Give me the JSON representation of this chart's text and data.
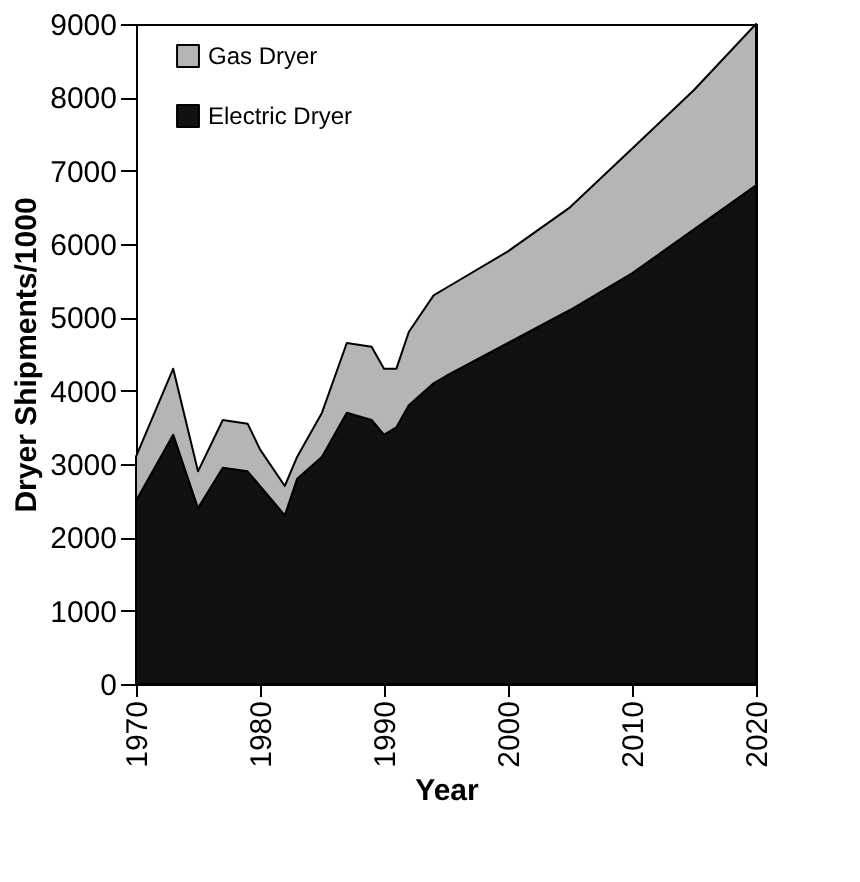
{
  "chart_data": {
    "type": "area",
    "stacked": true,
    "xlabel": "Year",
    "ylabel": "Dryer Shipments/1000",
    "x": [
      1970,
      1973,
      1975,
      1977,
      1979,
      1980,
      1982,
      1983,
      1985,
      1987,
      1989,
      1990,
      1991,
      1992,
      1994,
      1995,
      2000,
      2005,
      2010,
      2015,
      2020
    ],
    "series": [
      {
        "name": "Electric Dryer",
        "color": "#111111",
        "values": [
          2500,
          3400,
          2400,
          2950,
          2900,
          2700,
          2300,
          2800,
          3100,
          3700,
          3600,
          3400,
          3500,
          3800,
          4100,
          4200,
          4650,
          5100,
          5600,
          6200,
          6800
        ]
      },
      {
        "name": "Gas Dryer",
        "color": "#b5b5b5",
        "values": [
          600,
          900,
          500,
          650,
          650,
          500,
          400,
          300,
          600,
          950,
          1000,
          900,
          800,
          1000,
          1200,
          1200,
          1250,
          1400,
          1700,
          1900,
          2200
        ]
      }
    ],
    "xlim": [
      1970,
      2020
    ],
    "xticks": [
      1970,
      1980,
      1990,
      2000,
      2010,
      2020
    ],
    "ylim": [
      0,
      9000
    ],
    "yticks": [
      0,
      1000,
      2000,
      3000,
      4000,
      5000,
      6000,
      7000,
      8000,
      9000
    ],
    "legend": "top left",
    "grid": false
  }
}
